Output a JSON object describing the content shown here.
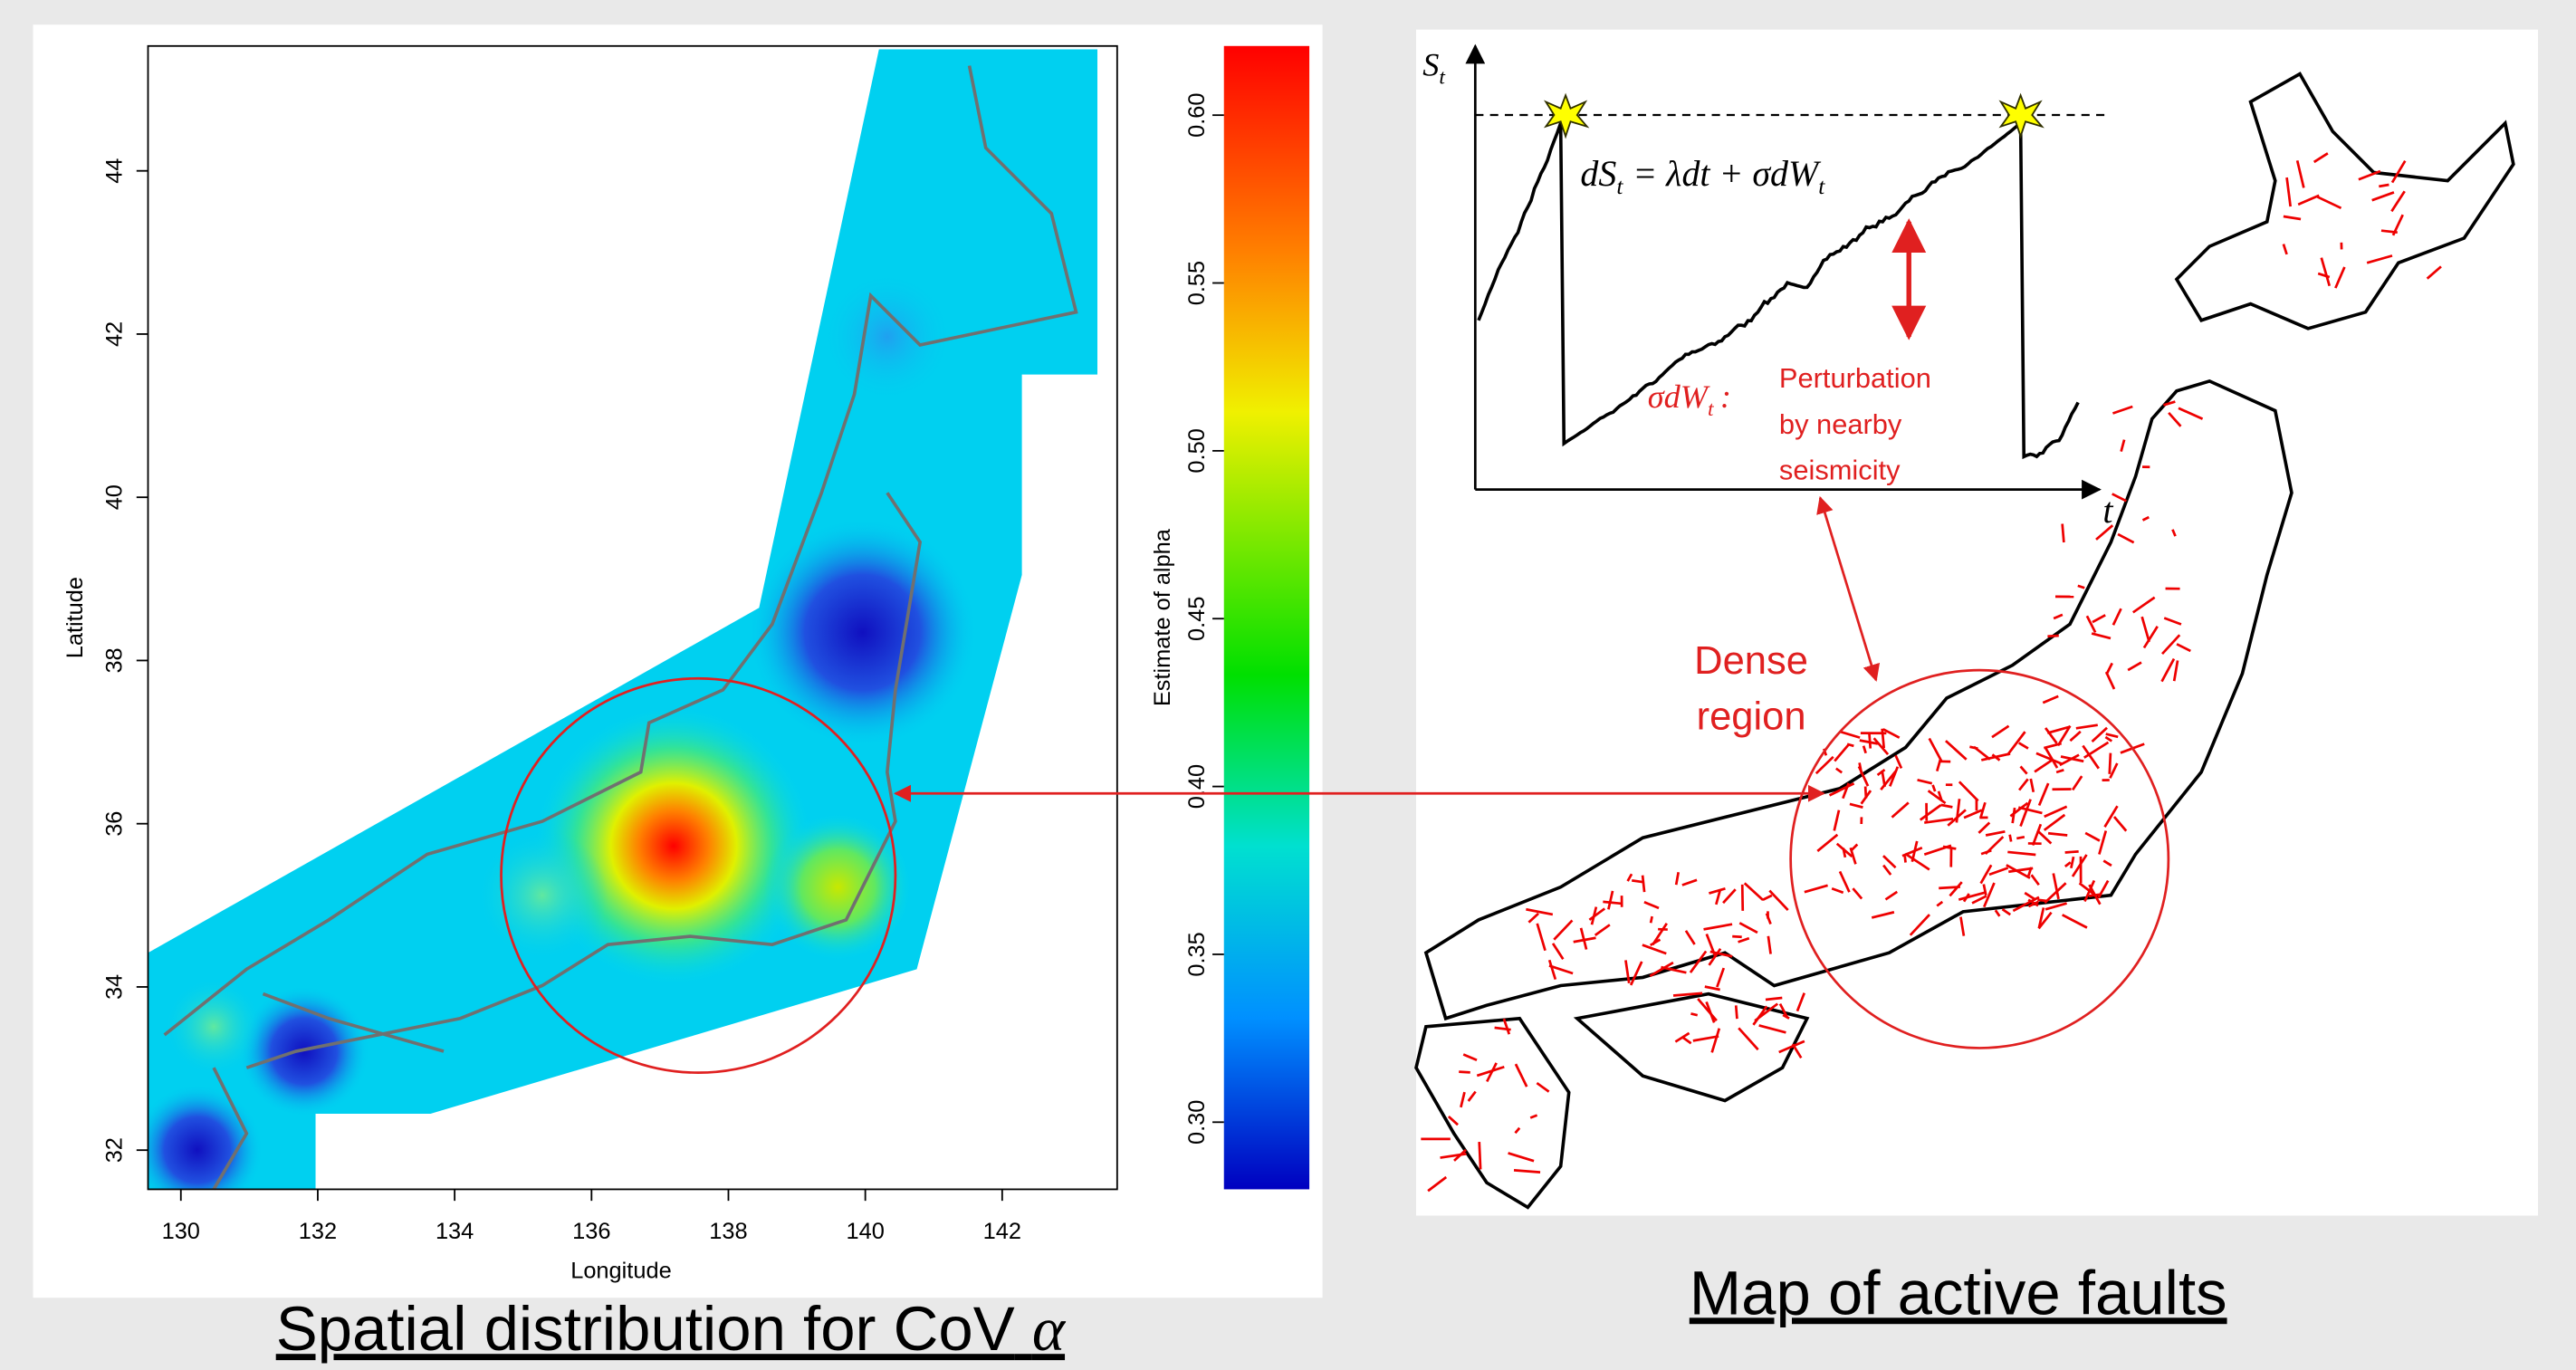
{
  "left_map": {
    "xlabel": "Longitude",
    "ylabel": "Latitude",
    "xlim": [
      129.52,
      143.68
    ],
    "ylim": [
      31.52,
      45.53
    ],
    "xticks": [
      130,
      132,
      134,
      136,
      138,
      140,
      142
    ],
    "yticks": [
      32,
      34,
      36,
      38,
      40,
      42,
      44
    ],
    "colorbar": {
      "label": "Estimate of alpha",
      "lim": [
        0.28,
        0.6206
      ],
      "ticks": [
        {
          "value": 0.3,
          "label": "0.30"
        },
        0.35,
        {
          "value": 0.4,
          "label": "0.40"
        },
        0.45,
        {
          "value": 0.5,
          "label": "0.50"
        },
        0.55,
        {
          "value": 0.6,
          "label": "0.60"
        }
      ]
    },
    "caption": {
      "text": "Spatial distribution for CoV",
      "symbol": "α"
    }
  },
  "right_map": {
    "caption": "Map of active faults",
    "dense_label": [
      "Dense",
      "region"
    ],
    "inset": {
      "y_label": "S",
      "y_label_sub": "t",
      "x_label": "t",
      "equation": {
        "lhs": "dS",
        "lhs_sub": "t",
        "rhs": "= λdt + σdW",
        "rhs_sub": "t"
      },
      "noise_term": {
        "text": "σdW",
        "sub": "t",
        "colon": ":"
      },
      "perturbation": [
        "Perturbation",
        "by nearby",
        "seismicity"
      ]
    }
  }
}
